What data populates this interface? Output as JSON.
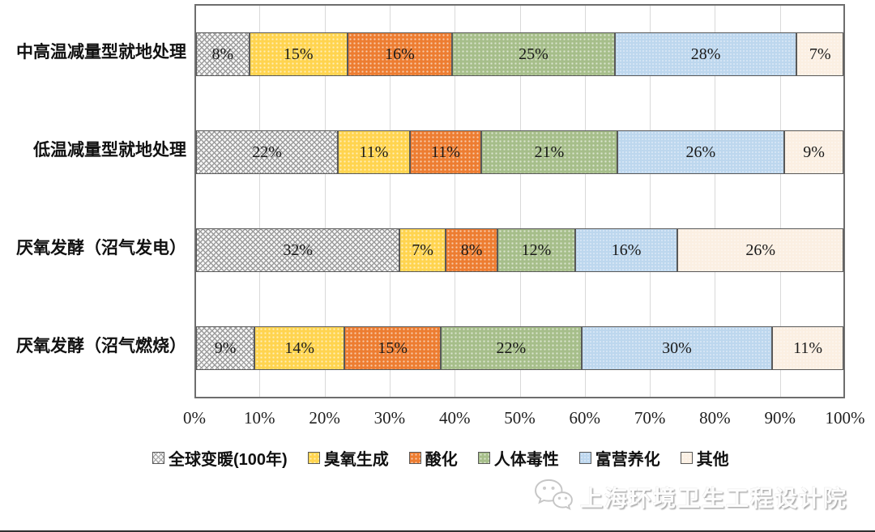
{
  "chart_data": {
    "type": "bar",
    "variant": "horizontal-stacked-100pct",
    "categories": [
      "中高温减量型就地处理",
      "低温减量型就地处理",
      "厌氧发酵（沼气发电）",
      "厌氧发酵（沼气燃烧）"
    ],
    "series": [
      {
        "id": "global-warming",
        "name": "全球变暖(100年)",
        "values": [
          8,
          22,
          32,
          9
        ],
        "fill": "hatch",
        "color": "#f7f7f7"
      },
      {
        "id": "ozone-formation",
        "name": "臭氧生成",
        "values": [
          15,
          11,
          7,
          14
        ],
        "fill": "dots",
        "color": "#ffd44f"
      },
      {
        "id": "acidification",
        "name": "酸化",
        "values": [
          16,
          11,
          8,
          15
        ],
        "fill": "dots",
        "color": "#ed7d31"
      },
      {
        "id": "human-toxicity",
        "name": "人体毒性",
        "values": [
          25,
          21,
          12,
          22
        ],
        "fill": "dots",
        "color": "#a6be8a"
      },
      {
        "id": "eutrophication",
        "name": "富营养化",
        "values": [
          28,
          26,
          16,
          30
        ],
        "fill": "dots-faint",
        "color": "#bdd7ee"
      },
      {
        "id": "other",
        "name": "其他",
        "values": [
          7,
          9,
          26,
          11
        ],
        "fill": "dots-faint",
        "color": "#fbefe2"
      }
    ],
    "value_label_suffix": "%",
    "x_ticks": [
      "0%",
      "10%",
      "20%",
      "30%",
      "40%",
      "50%",
      "60%",
      "70%",
      "80%",
      "90%",
      "100%"
    ],
    "xlim": [
      0,
      100
    ],
    "grid": true,
    "gridline_color": "#d9d9d9",
    "segment_border_color": "#595959",
    "legend_position": "bottom"
  },
  "watermark": {
    "text": "上海环境卫生工程设计院",
    "icon": "wechat-logo"
  }
}
